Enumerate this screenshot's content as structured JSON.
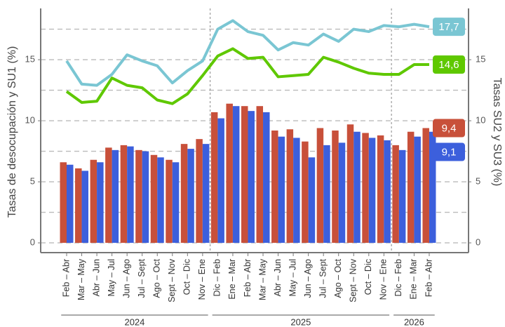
{
  "chart_data": {
    "type": "bar_line",
    "y_label": "Tasas de desocupación y SU1 (%)",
    "y2_label": "Tasas SU2 y SU3 (%)",
    "categories": [
      "Feb – Abr",
      "Mar – May",
      "Abr – Jun",
      "May – Jul",
      "Jun – Ago",
      "Jul – Sept",
      "Ago – Oct",
      "Sept – Nov",
      "Oct – Dic",
      "Nov – Ene",
      "Dic – Feb",
      "Ene – Mar",
      "Feb – Abr",
      "Mar – May",
      "Abr – Jun",
      "May – Jul",
      "Jun – Ago",
      "Jul – Sept",
      "Ago – Oct",
      "Sept – Nov",
      "Oct – Dic",
      "Nov – Ene",
      "Dic – Feb",
      "Ene – Mar",
      "Feb – Abr"
    ],
    "groups": [
      "2024",
      "2025",
      "2026"
    ],
    "series": [
      {
        "kind": "bar",
        "color": "#c8503a",
        "values": [
          6.6,
          6.1,
          6.8,
          7.8,
          8.0,
          7.6,
          7.2,
          6.8,
          8.1,
          8.5,
          10.7,
          11.4,
          11.2,
          11.2,
          9.2,
          9.3,
          8.3,
          9.4,
          9.2,
          9.7,
          9.0,
          8.8,
          8.0,
          9.1,
          9.4
        ],
        "last_label": "9,4"
      },
      {
        "kind": "bar",
        "axis": "y2",
        "color": "#3c5fdc",
        "values": [
          6.4,
          5.9,
          6.6,
          7.6,
          7.9,
          7.5,
          7.0,
          6.6,
          7.7,
          8.1,
          10.2,
          11.2,
          10.8,
          10.7,
          8.7,
          8.6,
          7.0,
          8.0,
          8.2,
          9.1,
          8.6,
          8.4,
          7.6,
          8.7,
          9.1
        ],
        "last_label": "9,1"
      },
      {
        "kind": "line",
        "axis": "y2",
        "color": "#5fc800",
        "values": [
          12.4,
          11.5,
          11.6,
          13.5,
          12.9,
          12.7,
          11.7,
          11.4,
          12.2,
          13.7,
          15.3,
          15.9,
          15.1,
          15.2,
          13.6,
          13.7,
          13.8,
          15.2,
          14.8,
          14.3,
          13.9,
          13.8,
          13.8,
          14.6,
          14.6
        ],
        "last_label": "14,6"
      },
      {
        "kind": "line",
        "axis": "y2",
        "color": "#7ac6d3",
        "values": [
          14.9,
          13.0,
          12.9,
          13.8,
          15.4,
          14.9,
          14.5,
          13.1,
          14.1,
          14.9,
          17.5,
          18.2,
          17.3,
          17.0,
          15.8,
          16.4,
          16.2,
          17.1,
          16.5,
          17.5,
          17.3,
          17.8,
          17.7,
          17.9,
          17.7
        ],
        "last_label": "17,7"
      }
    ],
    "ylim": [
      -0.8,
      19.2
    ],
    "yticks": [
      0,
      5,
      10,
      15
    ],
    "y2lim": [
      -0.8,
      19.2
    ],
    "y2ticks": [
      0,
      5,
      10,
      15
    ],
    "yminor": [
      2.5,
      7.5,
      12.5,
      17.5
    ],
    "grid": true
  }
}
